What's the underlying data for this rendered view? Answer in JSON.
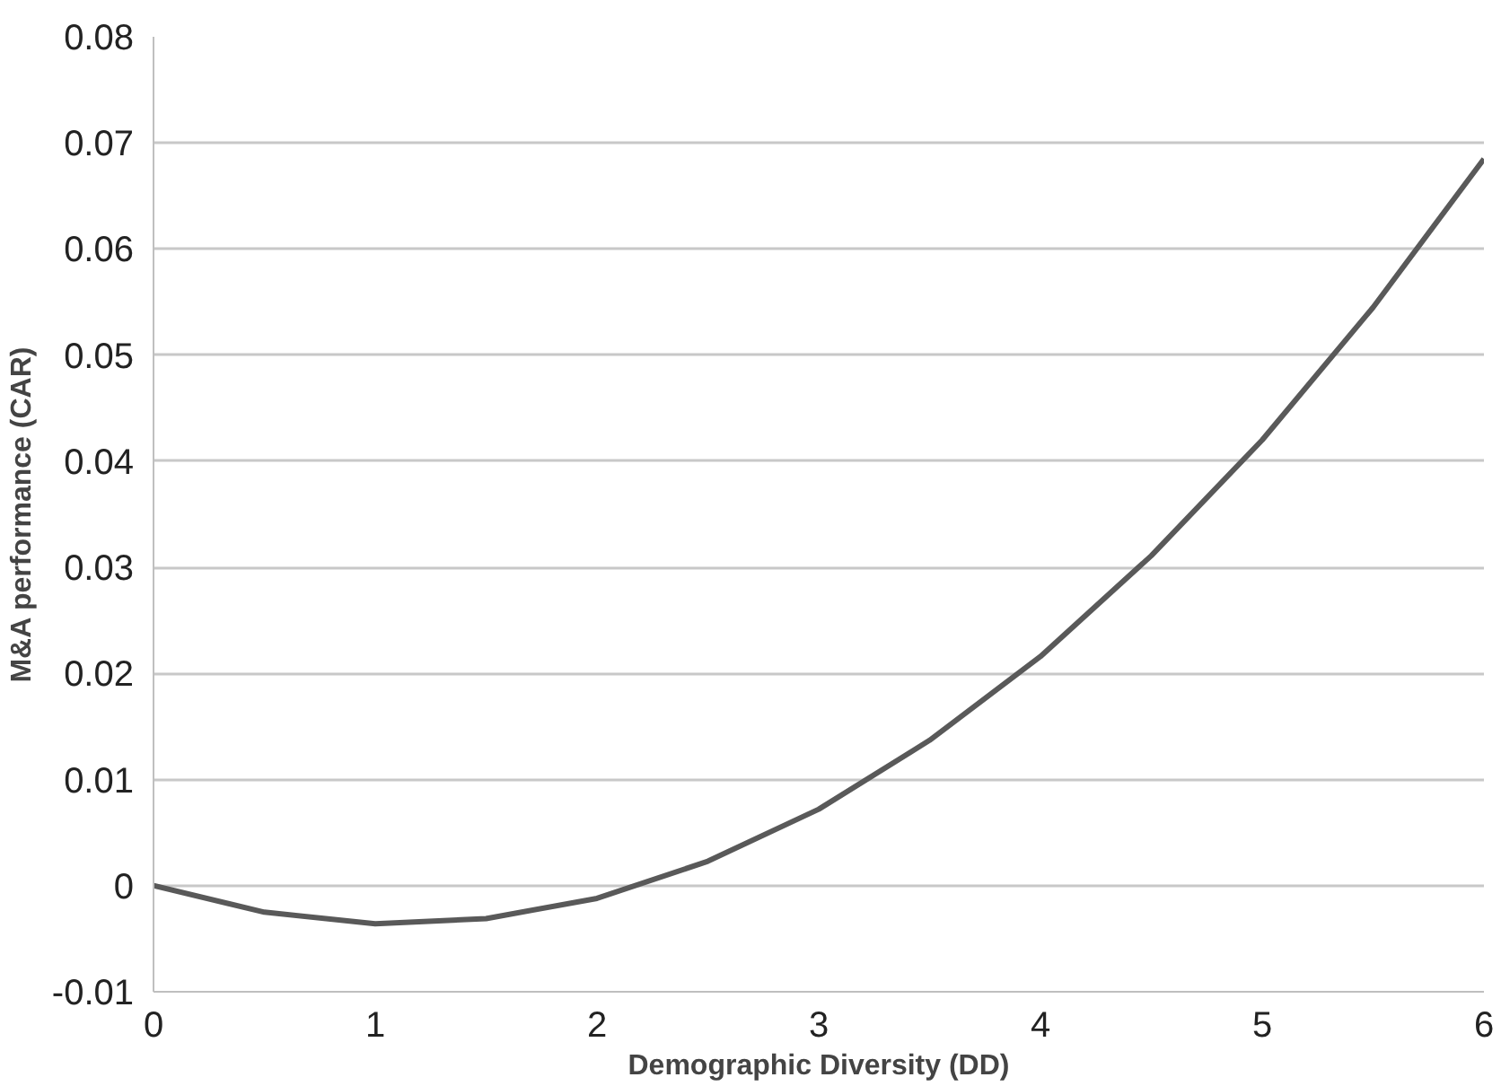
{
  "chart_data": {
    "type": "line",
    "xlabel": "Demographic Diversity (DD)",
    "ylabel": "M&A performance (CAR)",
    "x": [
      0,
      0.5,
      1,
      1.5,
      2,
      2.5,
      3,
      3.5,
      4,
      4.5,
      5,
      5.5,
      6
    ],
    "series": [
      {
        "color": "#595959",
        "values": [
          0.0,
          -0.0025,
          -0.0036,
          -0.0031,
          -0.0012,
          0.0023,
          0.0072,
          0.0137,
          0.0216,
          0.0311,
          0.042,
          0.0545,
          0.0685
        ]
      }
    ],
    "xlim": [
      0,
      6
    ],
    "xticks": [
      0,
      1,
      2,
      3,
      4,
      5,
      6
    ],
    "ylim": [
      -0.01,
      0.08
    ],
    "yticks": [
      -0.01,
      0,
      0.01,
      0.02,
      0.03,
      0.04,
      0.05,
      0.06,
      0.07,
      0.08
    ],
    "grid": "y",
    "marker": "none",
    "line_style": "solid"
  }
}
